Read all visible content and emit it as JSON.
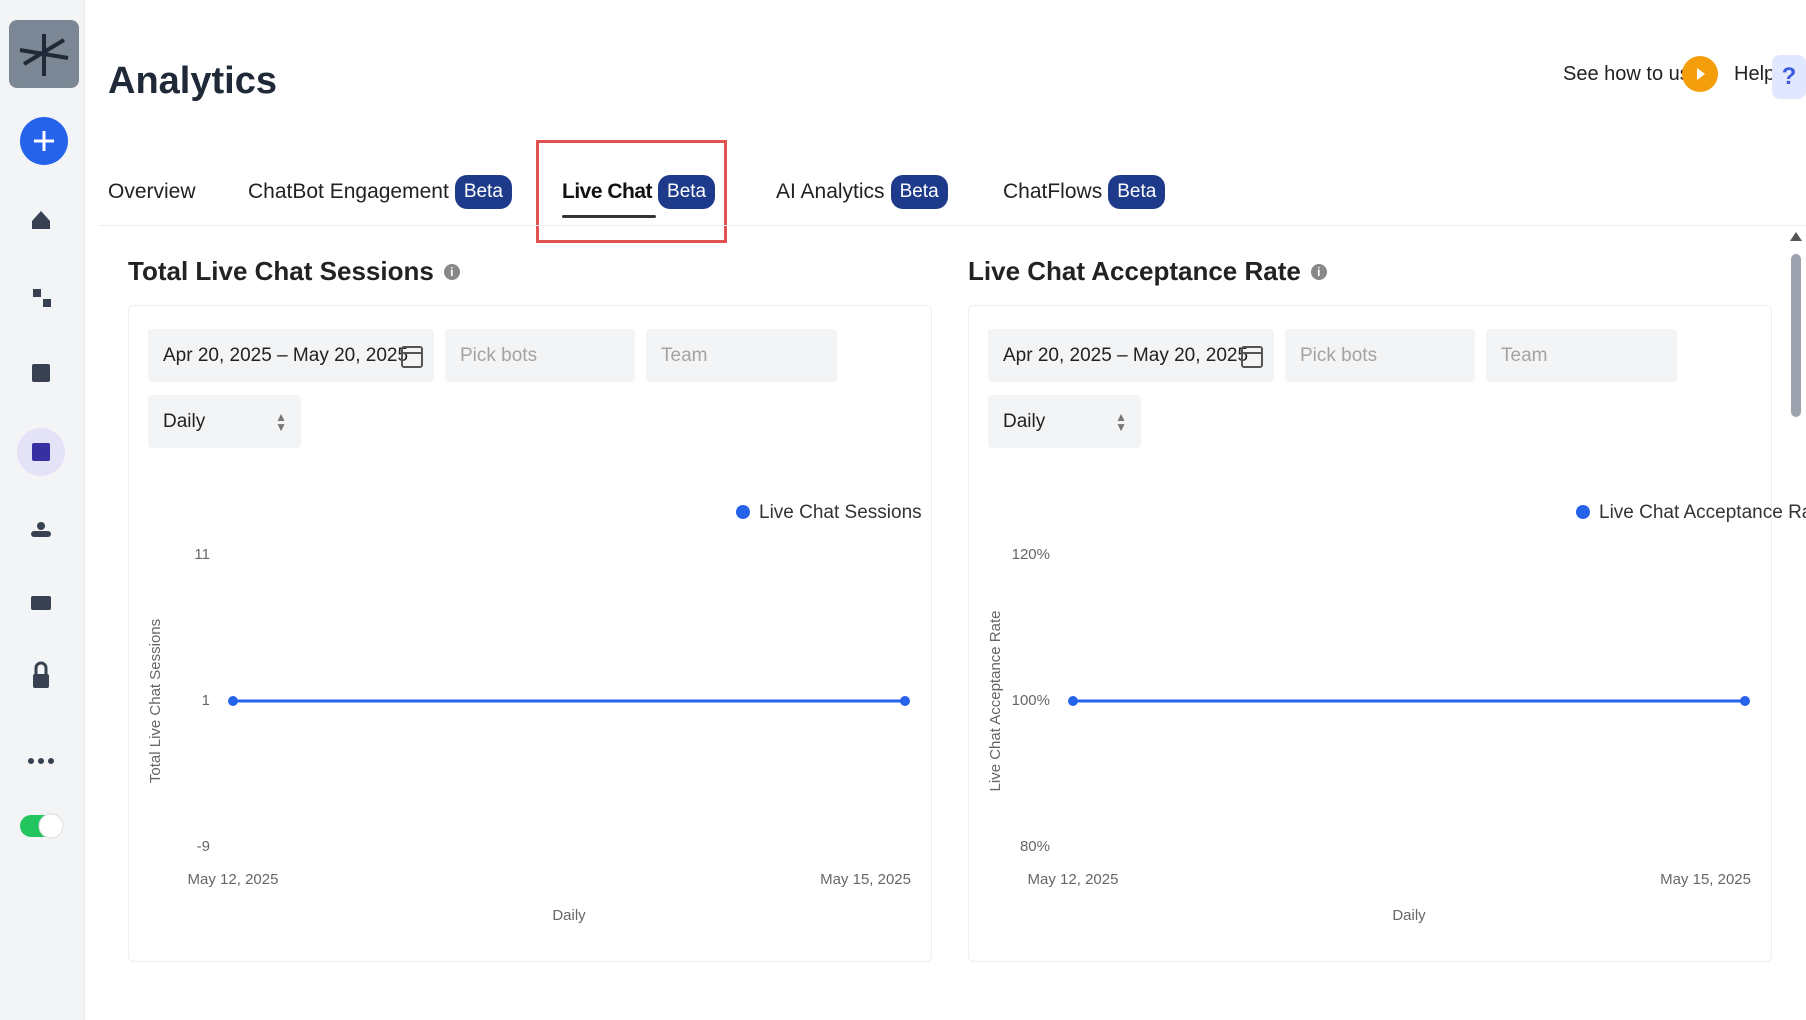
{
  "header": {
    "title": "Analytics",
    "guide": "See how to use",
    "help": "Help",
    "help_icon": "?"
  },
  "tabs": [
    {
      "label": "Overview"
    },
    {
      "label": "ChatBot Engagement",
      "badge": "Beta"
    },
    {
      "label": "Live Chat",
      "badge": "Beta",
      "active": true
    },
    {
      "label": "AI Analytics",
      "badge": "Beta"
    },
    {
      "label": "ChatFlows",
      "badge": "Beta"
    }
  ],
  "panels": [
    {
      "title": "Total Live Chat Sessions",
      "date_range": "Apr 20, 2025 – May 20, 2025",
      "bots": "Pick bots",
      "team": "Team",
      "interval": "Daily",
      "chart": {
        "type": "line",
        "x": [
          "May 12, 2025",
          "May 15, 2025"
        ],
        "series": [
          {
            "name": "Live Chat Sessions",
            "color": "#2563eb",
            "values": [
              1,
              1
            ]
          }
        ],
        "y_label": "Total Live Chat Sessions",
        "x_label": "Daily",
        "ylim": [
          -9,
          11
        ],
        "yticks": [
          -9,
          1,
          11
        ]
      }
    },
    {
      "title": "Live Chat Acceptance Rate",
      "date_range": "Apr 20, 2025 – May 20, 2025",
      "bots": "Pick bots",
      "team": "Team",
      "interval": "Daily",
      "chart": {
        "type": "line",
        "x": [
          "May 12, 2025",
          "May 15, 2025"
        ],
        "series": [
          {
            "name": "Live Chat Acceptance Rate",
            "color": "#2563eb",
            "values": [
              100,
              100
            ]
          }
        ],
        "y_label": "Live Chat Acceptance Rate",
        "x_label": "Daily",
        "ylim": [
          80,
          120
        ],
        "yticks": [
          {
            "value": 80,
            "label": "80%"
          },
          {
            "value": 100,
            "label": "100%"
          },
          {
            "value": 120,
            "label": "120%"
          }
        ]
      }
    }
  ]
}
